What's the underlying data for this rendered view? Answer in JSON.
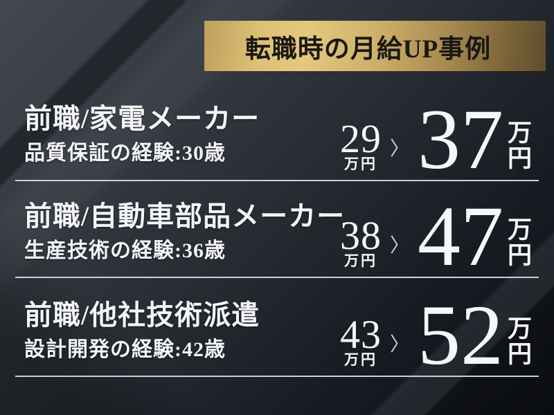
{
  "banner": {
    "title": "転職時の月給UP事例"
  },
  "colors": {
    "gold_light": "#e3c87e",
    "gold_dark": "#5e4d2b",
    "background_top_left": "#43484f",
    "background_bottom_right": "#0d1015",
    "text": "#f4f5f7",
    "divider": "#ccd1d6",
    "banner_text": "#191813"
  },
  "rows": [
    {
      "title": "前職/家電メーカー",
      "sub": "品質保証の経験:30歳",
      "before_amount": "29",
      "before_unit": "万円",
      "arrow": "〉",
      "after_amount": "37",
      "after_unit_top": "万",
      "after_unit_bottom": "円"
    },
    {
      "title": "前職/自動車部品メーカー",
      "sub": "生産技術の経験:36歳",
      "before_amount": "38",
      "before_unit": "万円",
      "arrow": "〉",
      "after_amount": "47",
      "after_unit_top": "万",
      "after_unit_bottom": "円"
    },
    {
      "title": "前職/他社技術派遣",
      "sub": "設計開発の経験:42歳",
      "before_amount": "43",
      "before_unit": "万円",
      "arrow": "〉",
      "after_amount": "52",
      "after_unit_top": "万",
      "after_unit_bottom": "円"
    }
  ]
}
